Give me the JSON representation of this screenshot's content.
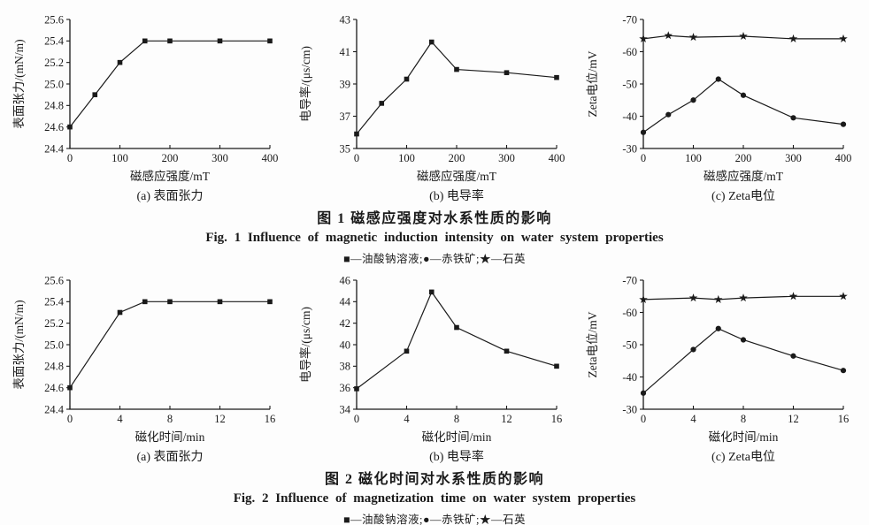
{
  "page": {
    "ink": "#1a1a1a",
    "background": "#fdfdfd"
  },
  "figures": [
    {
      "caption_cn": "图  1  磁感应强度对水系性质的影响",
      "caption_en": "Fig.  1  Influence of magnetic induction intensity on water system properties",
      "legend": "■—油酸钠溶液;●—赤铁矿;★—石英"
    },
    {
      "caption_cn": "图  2  磁化时间对水系性质的影响",
      "caption_en": "Fig.  2  Influence of magnetization time on water system properties",
      "legend": "■—油酸钠溶液;●—赤铁矿;★—石英"
    }
  ],
  "chart_data": [
    {
      "type": "line",
      "panel": "(a) 表面张力",
      "xlabel": "磁感应强度/mT",
      "ylabel": "表面张力/(mN/m)",
      "xlim": [
        0,
        400
      ],
      "ylim": [
        24.4,
        25.6
      ],
      "xticks": [
        0,
        100,
        200,
        300,
        400
      ],
      "xtick_labels": [
        "0",
        "100",
        "200",
        "300",
        "400"
      ],
      "yticks": [
        24.4,
        24.6,
        24.8,
        25.0,
        25.2,
        25.4,
        25.6
      ],
      "ytick_labels": [
        "24.4",
        "24.6",
        "24.8",
        "25.0",
        "25.2",
        "25.4",
        "25.6"
      ],
      "grid": false,
      "series": [
        {
          "name": "油酸钠溶液",
          "marker": "square",
          "x": [
            0,
            50,
            100,
            150,
            200,
            300,
            400
          ],
          "y": [
            24.6,
            24.9,
            25.2,
            25.4,
            25.4,
            25.4,
            25.4
          ]
        }
      ]
    },
    {
      "type": "line",
      "panel": "(b) 电导率",
      "xlabel": "磁感应强度/mT",
      "ylabel": "电导率/(μs/cm)",
      "xlim": [
        0,
        400
      ],
      "ylim": [
        35,
        43
      ],
      "xticks": [
        0,
        100,
        200,
        300,
        400
      ],
      "xtick_labels": [
        "0",
        "100",
        "200",
        "300",
        "400"
      ],
      "yticks": [
        35,
        37,
        39,
        41,
        43
      ],
      "ytick_labels": [
        "35",
        "37",
        "39",
        "41",
        "43"
      ],
      "grid": false,
      "series": [
        {
          "name": "油酸钠溶液",
          "marker": "square",
          "x": [
            0,
            50,
            100,
            150,
            200,
            300,
            400
          ],
          "y": [
            35.9,
            37.8,
            39.3,
            41.6,
            39.9,
            39.7,
            39.4
          ]
        }
      ]
    },
    {
      "type": "line",
      "panel": "(c) Zeta电位",
      "xlabel": "磁感应强度/mT",
      "ylabel": "Zeta电位/mV",
      "xlim": [
        0,
        400
      ],
      "ylim": [
        -30,
        -70
      ],
      "xticks": [
        0,
        100,
        200,
        300,
        400
      ],
      "xtick_labels": [
        "0",
        "100",
        "200",
        "300",
        "400"
      ],
      "yticks": [
        -30,
        -40,
        -50,
        -60,
        -70
      ],
      "ytick_labels": [
        "-30",
        "-40",
        "-50",
        "-60",
        "-70"
      ],
      "grid": false,
      "series": [
        {
          "name": "赤铁矿",
          "marker": "circle",
          "x": [
            0,
            50,
            100,
            150,
            200,
            300,
            400
          ],
          "y": [
            -35,
            -40.5,
            -45,
            -51.5,
            -46.5,
            -39.5,
            -37.5
          ]
        },
        {
          "name": "石英",
          "marker": "star",
          "x": [
            0,
            50,
            100,
            200,
            300,
            400
          ],
          "y": [
            -64,
            -65,
            -64.5,
            -64.8,
            -64,
            -64
          ]
        }
      ]
    },
    {
      "type": "line",
      "panel": "(a) 表面张力",
      "xlabel": "磁化时间/min",
      "ylabel": "表面张力/(mN/m)",
      "xlim": [
        0,
        16
      ],
      "ylim": [
        24.4,
        25.6
      ],
      "xticks": [
        0,
        4,
        8,
        12,
        16
      ],
      "xtick_labels": [
        "0",
        "4",
        "8",
        "12",
        "16"
      ],
      "yticks": [
        24.4,
        24.6,
        24.8,
        25.0,
        25.2,
        25.4,
        25.6
      ],
      "ytick_labels": [
        "24.4",
        "24.6",
        "24.8",
        "25.0",
        "25.2",
        "25.4",
        "25.6"
      ],
      "grid": false,
      "series": [
        {
          "name": "油酸钠溶液",
          "marker": "square",
          "x": [
            0,
            4,
            6,
            8,
            12,
            16
          ],
          "y": [
            24.6,
            25.3,
            25.4,
            25.4,
            25.4,
            25.4
          ]
        }
      ]
    },
    {
      "type": "line",
      "panel": "(b) 电导率",
      "xlabel": "磁化时间/min",
      "ylabel": "电导率/(μs/cm)",
      "xlim": [
        0,
        16
      ],
      "ylim": [
        34,
        46
      ],
      "xticks": [
        0,
        4,
        8,
        12,
        16
      ],
      "xtick_labels": [
        "0",
        "4",
        "8",
        "12",
        "16"
      ],
      "yticks": [
        34,
        36,
        38,
        40,
        42,
        44,
        46
      ],
      "ytick_labels": [
        "34",
        "36",
        "38",
        "40",
        "42",
        "44",
        "46"
      ],
      "grid": false,
      "series": [
        {
          "name": "油酸钠溶液",
          "marker": "square",
          "x": [
            0,
            4,
            6,
            8,
            12,
            16
          ],
          "y": [
            35.9,
            39.4,
            44.9,
            41.6,
            39.4,
            38.0
          ]
        }
      ]
    },
    {
      "type": "line",
      "panel": "(c) Zeta电位",
      "xlabel": "磁化时间/min",
      "ylabel": "Zeta电位/mV",
      "xlim": [
        0,
        16
      ],
      "ylim": [
        -30,
        -70
      ],
      "xticks": [
        0,
        4,
        8,
        12,
        16
      ],
      "xtick_labels": [
        "0",
        "4",
        "8",
        "12",
        "16"
      ],
      "yticks": [
        -30,
        -40,
        -50,
        -60,
        -70
      ],
      "ytick_labels": [
        "-30",
        "-40",
        "-50",
        "-60",
        "-70"
      ],
      "grid": false,
      "series": [
        {
          "name": "赤铁矿",
          "marker": "circle",
          "x": [
            0,
            4,
            6,
            8,
            12,
            16
          ],
          "y": [
            -35,
            -48.5,
            -55,
            -51.5,
            -46.5,
            -42
          ]
        },
        {
          "name": "石英",
          "marker": "star",
          "x": [
            0,
            4,
            6,
            8,
            12,
            16
          ],
          "y": [
            -64,
            -64.5,
            -64,
            -64.5,
            -65,
            -65
          ]
        }
      ]
    }
  ]
}
